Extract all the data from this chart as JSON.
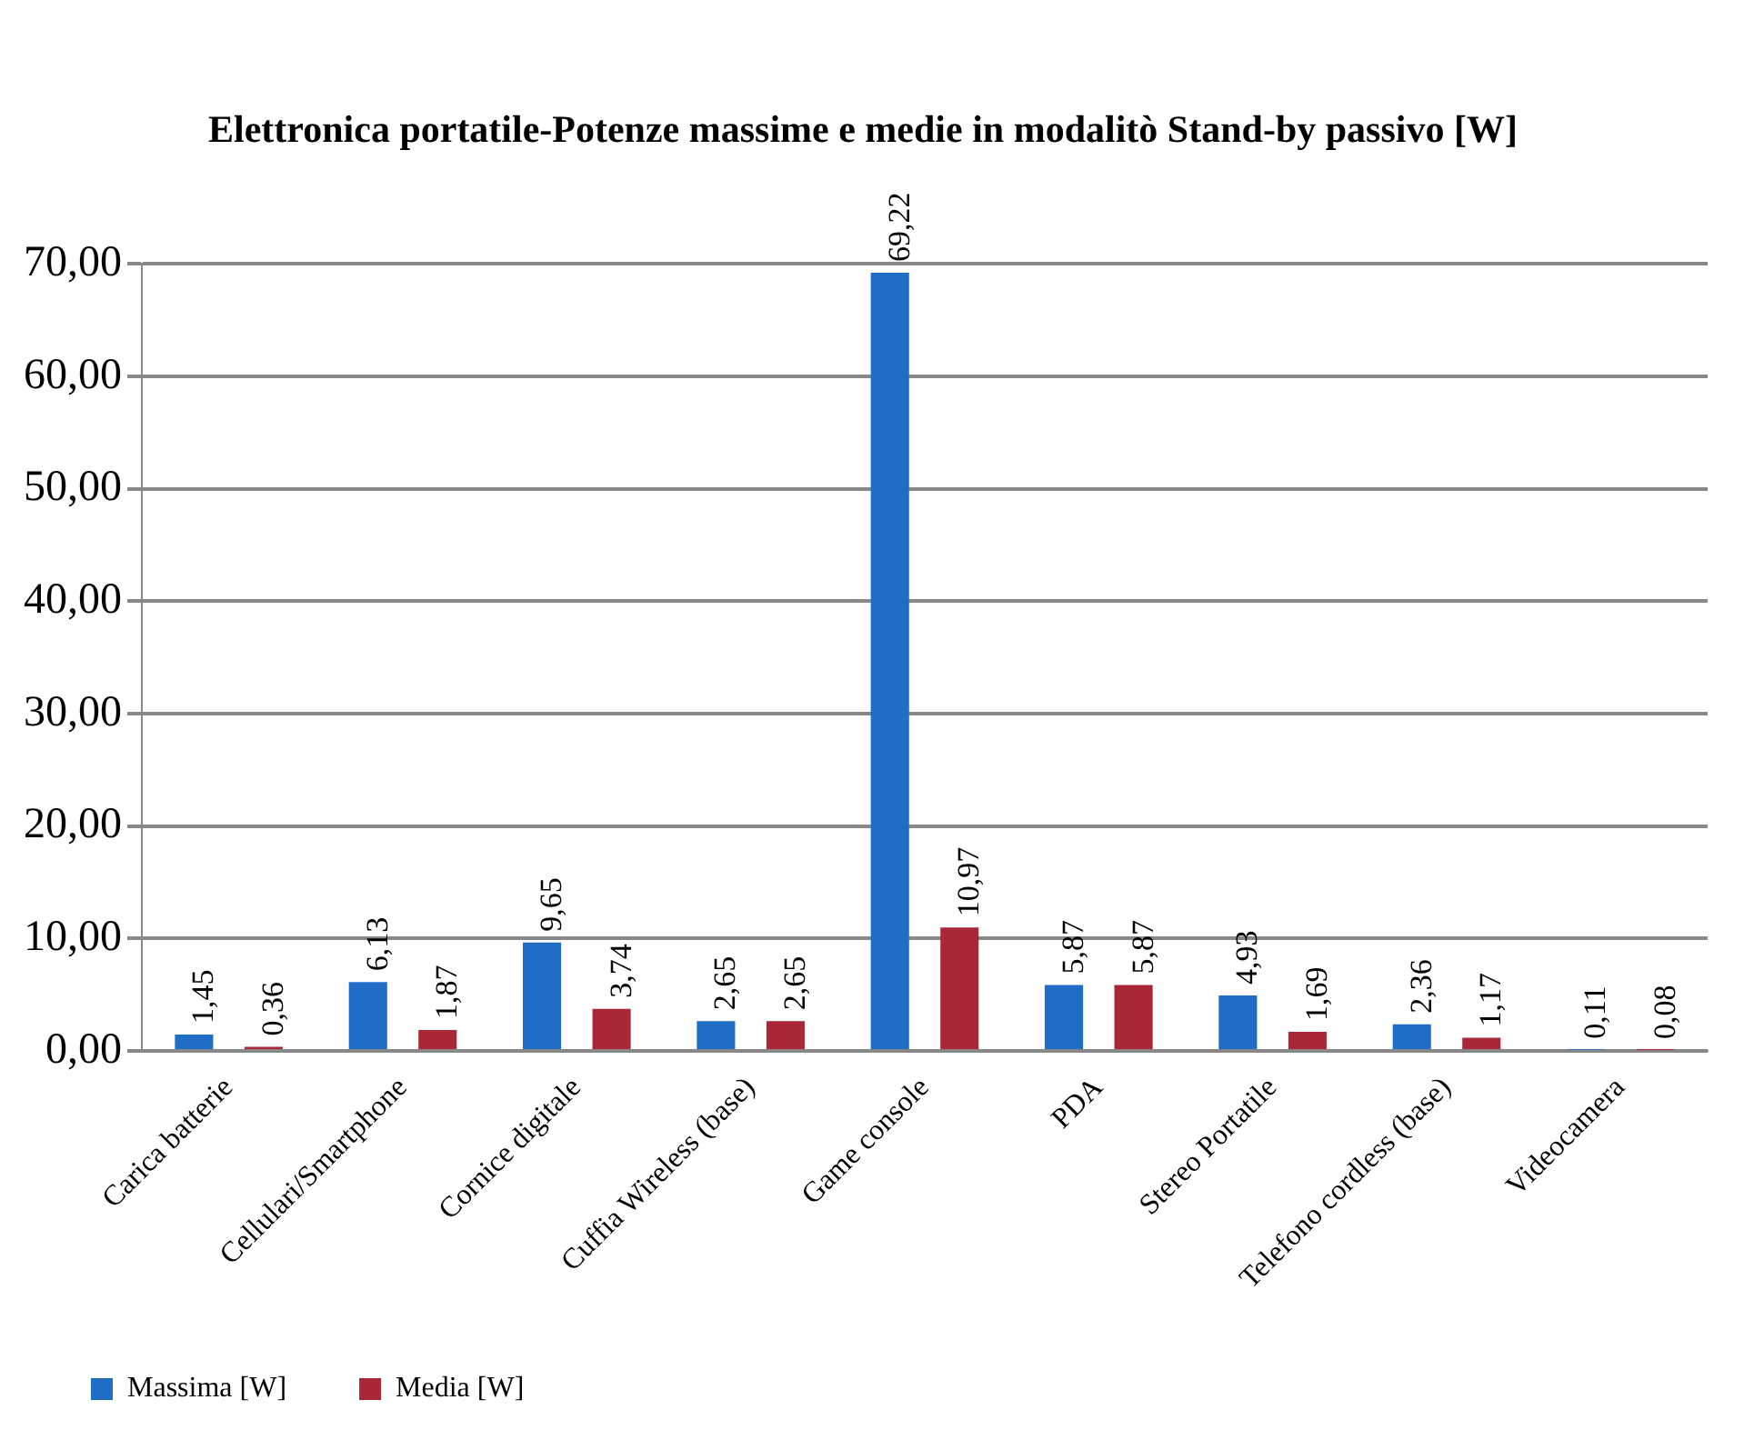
{
  "chart_data": {
    "type": "bar",
    "title": "Elettronica portatile-Potenze massime e medie in modalitò Stand-by passivo [W]",
    "categories": [
      "Carica batterie",
      "Cellulari/Smartphone",
      "Cornice digitale",
      "Cuffia Wireless (base)",
      "Game console",
      "PDA",
      "Stereo Portatile",
      "Telefono cordless (base)",
      "Videocamera"
    ],
    "series": [
      {
        "name": "Massima [W]",
        "color": "#1f6dc4",
        "values": [
          1.45,
          6.13,
          9.65,
          2.65,
          69.22,
          5.87,
          4.93,
          2.36,
          0.11
        ],
        "value_labels": [
          "1,45",
          "6,13",
          "9,65",
          "2,65",
          "69,22",
          "5,87",
          "4,93",
          "2,36",
          "0,11"
        ]
      },
      {
        "name": "Media [W]",
        "color": "#a82838",
        "values": [
          0.36,
          1.87,
          3.74,
          2.65,
          10.97,
          5.87,
          1.69,
          1.17,
          0.08
        ],
        "value_labels": [
          "0,36",
          "1,87",
          "3,74",
          "2,65",
          "10,97",
          "5,87",
          "1,69",
          "1,17",
          "0,08"
        ]
      }
    ],
    "ylim": [
      0,
      70
    ],
    "yticks": [
      {
        "value": 0,
        "label": "0,00"
      },
      {
        "value": 10,
        "label": "10,00"
      },
      {
        "value": 20,
        "label": "20,00"
      },
      {
        "value": 30,
        "label": "30,00"
      },
      {
        "value": 40,
        "label": "40,00"
      },
      {
        "value": 50,
        "label": "50,00"
      },
      {
        "value": 60,
        "label": "60,00"
      },
      {
        "value": 70,
        "label": "70,00"
      }
    ],
    "grid": "y",
    "legend": "bottom"
  }
}
